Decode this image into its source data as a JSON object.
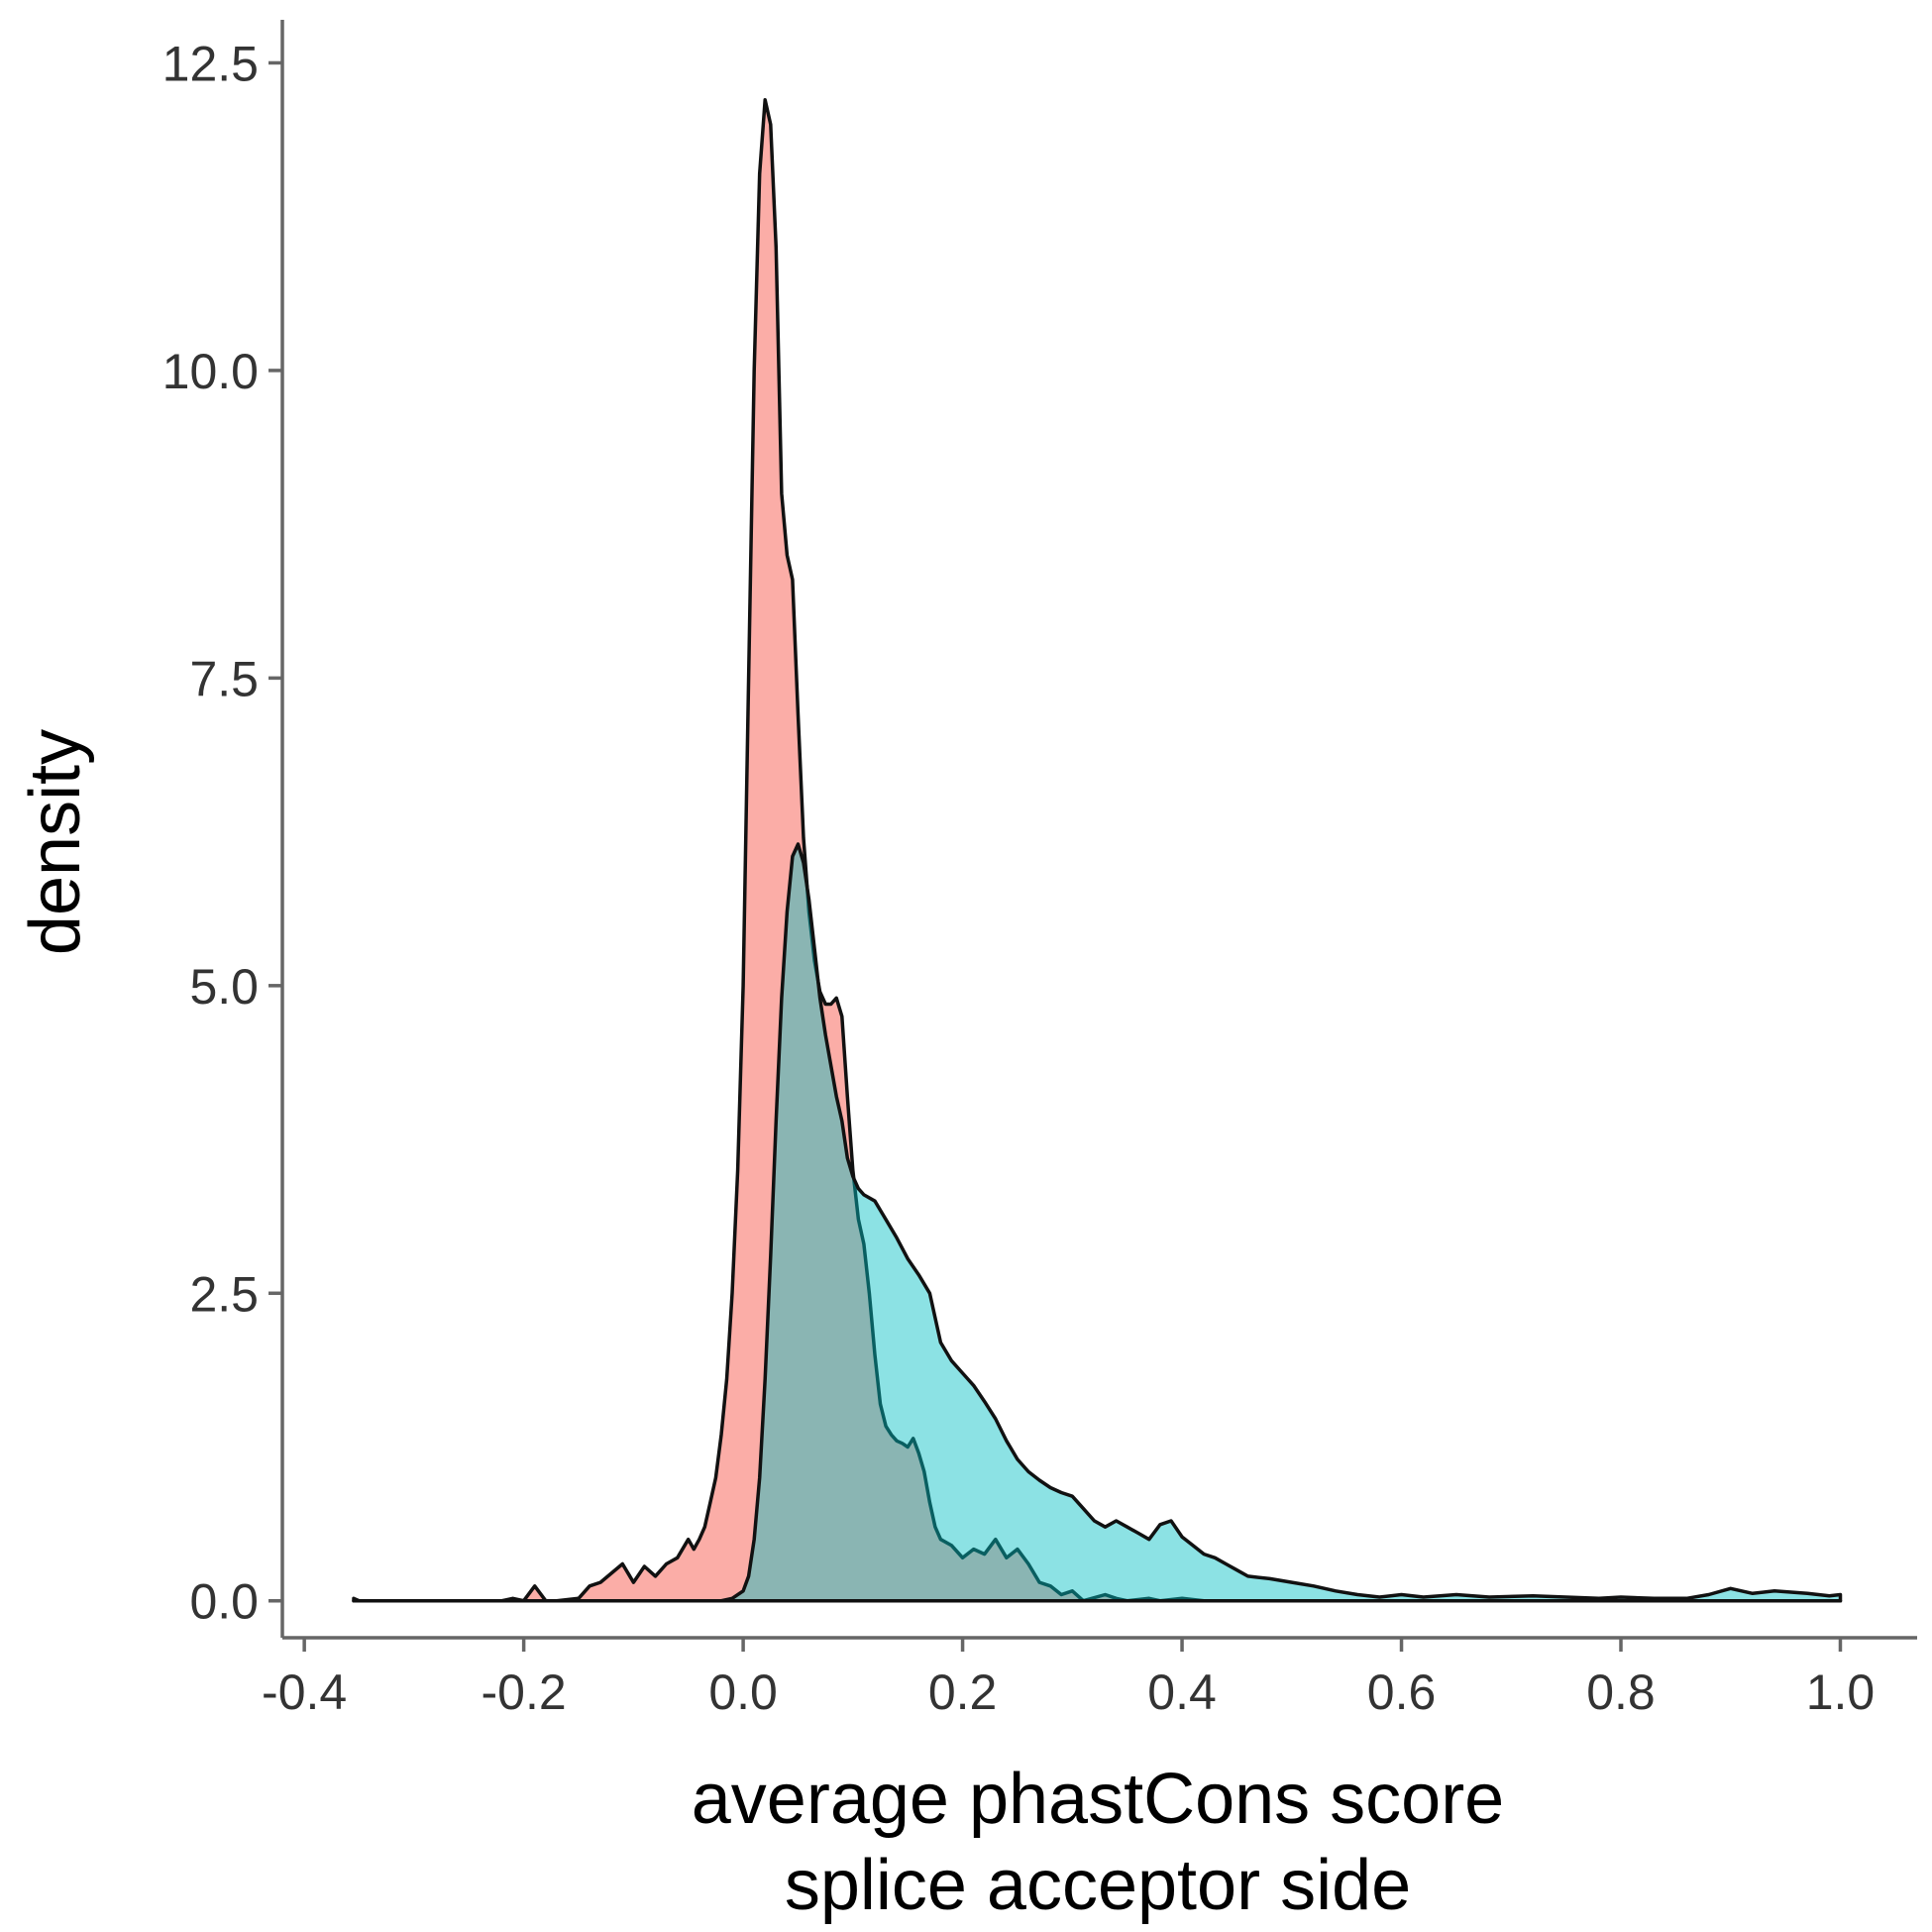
{
  "chart_data": {
    "type": "area",
    "title": "",
    "xlabel_lines": [
      "average phastCons score",
      "splice acceptor side"
    ],
    "ylabel": "density",
    "xlim": [
      -0.42,
      1.07
    ],
    "ylim": [
      -0.3,
      12.85
    ],
    "x_ticks": [
      -0.4,
      -0.2,
      0.0,
      0.2,
      0.4,
      0.6,
      0.8,
      1.0
    ],
    "x_tick_labels": [
      "-0.4",
      "-0.2",
      "0.0",
      "0.2",
      "0.4",
      "0.6",
      "0.8",
      "1.0"
    ],
    "y_ticks": [
      0.0,
      2.5,
      5.0,
      7.5,
      10.0,
      12.5
    ],
    "y_tick_labels": [
      "0.0",
      "2.5",
      "5.0",
      "7.5",
      "10.0",
      "12.5"
    ],
    "grid": false,
    "legend": "none",
    "series": [
      {
        "color": "#F8766D",
        "fill_opacity": 0.6,
        "points": [
          [
            -0.355,
            0.02
          ],
          [
            -0.35,
            0.0
          ],
          [
            -0.3,
            0.0
          ],
          [
            -0.25,
            0.0
          ],
          [
            -0.22,
            0.0
          ],
          [
            -0.21,
            0.02
          ],
          [
            -0.2,
            0.0
          ],
          [
            -0.19,
            0.12
          ],
          [
            -0.18,
            0.0
          ],
          [
            -0.17,
            0.0
          ],
          [
            -0.15,
            0.02
          ],
          [
            -0.14,
            0.12
          ],
          [
            -0.13,
            0.15
          ],
          [
            -0.11,
            0.3
          ],
          [
            -0.1,
            0.15
          ],
          [
            -0.09,
            0.28
          ],
          [
            -0.08,
            0.2
          ],
          [
            -0.07,
            0.3
          ],
          [
            -0.06,
            0.35
          ],
          [
            -0.05,
            0.5
          ],
          [
            -0.045,
            0.42
          ],
          [
            -0.04,
            0.5
          ],
          [
            -0.035,
            0.6
          ],
          [
            -0.03,
            0.8
          ],
          [
            -0.025,
            1.0
          ],
          [
            -0.02,
            1.35
          ],
          [
            -0.015,
            1.8
          ],
          [
            -0.01,
            2.5
          ],
          [
            -0.005,
            3.5
          ],
          [
            0.0,
            5.0
          ],
          [
            0.005,
            7.5
          ],
          [
            0.01,
            10.0
          ],
          [
            0.015,
            11.6
          ],
          [
            0.02,
            12.2
          ],
          [
            0.025,
            12.0
          ],
          [
            0.03,
            11.0
          ],
          [
            0.035,
            9.0
          ],
          [
            0.04,
            8.5
          ],
          [
            0.045,
            8.3
          ],
          [
            0.05,
            7.2
          ],
          [
            0.055,
            6.2
          ],
          [
            0.06,
            5.6
          ],
          [
            0.065,
            5.2
          ],
          [
            0.07,
            4.95
          ],
          [
            0.075,
            4.85
          ],
          [
            0.08,
            4.85
          ],
          [
            0.085,
            4.9
          ],
          [
            0.09,
            4.75
          ],
          [
            0.095,
            4.1
          ],
          [
            0.1,
            3.5
          ],
          [
            0.105,
            3.1
          ],
          [
            0.11,
            2.9
          ],
          [
            0.115,
            2.5
          ],
          [
            0.12,
            2.0
          ],
          [
            0.125,
            1.6
          ],
          [
            0.13,
            1.42
          ],
          [
            0.135,
            1.35
          ],
          [
            0.14,
            1.3
          ],
          [
            0.145,
            1.28
          ],
          [
            0.15,
            1.25
          ],
          [
            0.155,
            1.32
          ],
          [
            0.16,
            1.2
          ],
          [
            0.165,
            1.05
          ],
          [
            0.17,
            0.8
          ],
          [
            0.175,
            0.6
          ],
          [
            0.18,
            0.5
          ],
          [
            0.19,
            0.45
          ],
          [
            0.2,
            0.35
          ],
          [
            0.21,
            0.42
          ],
          [
            0.22,
            0.38
          ],
          [
            0.23,
            0.5
          ],
          [
            0.24,
            0.35
          ],
          [
            0.25,
            0.42
          ],
          [
            0.26,
            0.3
          ],
          [
            0.27,
            0.15
          ],
          [
            0.28,
            0.12
          ],
          [
            0.29,
            0.05
          ],
          [
            0.3,
            0.08
          ],
          [
            0.31,
            0.0
          ],
          [
            0.33,
            0.05
          ],
          [
            0.34,
            0.02
          ],
          [
            0.35,
            0.0
          ],
          [
            0.37,
            0.02
          ],
          [
            0.38,
            0.0
          ],
          [
            0.4,
            0.02
          ],
          [
            0.42,
            0.0
          ],
          [
            0.44,
            0.0
          ],
          [
            0.5,
            0.0
          ],
          [
            0.6,
            0.0
          ],
          [
            0.8,
            0.0
          ],
          [
            1.0,
            0.0
          ]
        ]
      },
      {
        "color": "#00BFC4",
        "fill_opacity": 0.45,
        "points": [
          [
            -0.355,
            0.0
          ],
          [
            -0.2,
            0.0
          ],
          [
            -0.05,
            0.0
          ],
          [
            -0.02,
            0.0
          ],
          [
            -0.01,
            0.02
          ],
          [
            0.0,
            0.08
          ],
          [
            0.005,
            0.2
          ],
          [
            0.01,
            0.5
          ],
          [
            0.015,
            1.0
          ],
          [
            0.02,
            1.8
          ],
          [
            0.025,
            2.8
          ],
          [
            0.03,
            3.9
          ],
          [
            0.035,
            4.9
          ],
          [
            0.04,
            5.6
          ],
          [
            0.045,
            6.05
          ],
          [
            0.05,
            6.15
          ],
          [
            0.055,
            6.0
          ],
          [
            0.06,
            5.7
          ],
          [
            0.065,
            5.3
          ],
          [
            0.07,
            4.9
          ],
          [
            0.075,
            4.6
          ],
          [
            0.08,
            4.35
          ],
          [
            0.085,
            4.1
          ],
          [
            0.09,
            3.9
          ],
          [
            0.095,
            3.6
          ],
          [
            0.1,
            3.45
          ],
          [
            0.105,
            3.35
          ],
          [
            0.11,
            3.3
          ],
          [
            0.12,
            3.25
          ],
          [
            0.13,
            3.1
          ],
          [
            0.14,
            2.95
          ],
          [
            0.15,
            2.78
          ],
          [
            0.16,
            2.65
          ],
          [
            0.17,
            2.5
          ],
          [
            0.175,
            2.3
          ],
          [
            0.18,
            2.1
          ],
          [
            0.19,
            1.95
          ],
          [
            0.2,
            1.85
          ],
          [
            0.21,
            1.75
          ],
          [
            0.22,
            1.62
          ],
          [
            0.23,
            1.48
          ],
          [
            0.24,
            1.3
          ],
          [
            0.25,
            1.15
          ],
          [
            0.26,
            1.05
          ],
          [
            0.27,
            0.98
          ],
          [
            0.28,
            0.92
          ],
          [
            0.29,
            0.88
          ],
          [
            0.3,
            0.85
          ],
          [
            0.31,
            0.75
          ],
          [
            0.32,
            0.65
          ],
          [
            0.33,
            0.6
          ],
          [
            0.34,
            0.65
          ],
          [
            0.35,
            0.6
          ],
          [
            0.36,
            0.55
          ],
          [
            0.37,
            0.5
          ],
          [
            0.38,
            0.62
          ],
          [
            0.39,
            0.65
          ],
          [
            0.4,
            0.52
          ],
          [
            0.41,
            0.45
          ],
          [
            0.42,
            0.38
          ],
          [
            0.43,
            0.35
          ],
          [
            0.44,
            0.3
          ],
          [
            0.45,
            0.25
          ],
          [
            0.46,
            0.2
          ],
          [
            0.48,
            0.18
          ],
          [
            0.5,
            0.15
          ],
          [
            0.52,
            0.12
          ],
          [
            0.54,
            0.08
          ],
          [
            0.56,
            0.05
          ],
          [
            0.58,
            0.03
          ],
          [
            0.6,
            0.05
          ],
          [
            0.62,
            0.03
          ],
          [
            0.65,
            0.05
          ],
          [
            0.68,
            0.03
          ],
          [
            0.72,
            0.04
          ],
          [
            0.75,
            0.03
          ],
          [
            0.78,
            0.02
          ],
          [
            0.8,
            0.03
          ],
          [
            0.83,
            0.02
          ],
          [
            0.86,
            0.02
          ],
          [
            0.88,
            0.05
          ],
          [
            0.9,
            0.1
          ],
          [
            0.92,
            0.06
          ],
          [
            0.94,
            0.08
          ],
          [
            0.97,
            0.06
          ],
          [
            0.99,
            0.04
          ],
          [
            1.0,
            0.05
          ]
        ]
      }
    ]
  }
}
